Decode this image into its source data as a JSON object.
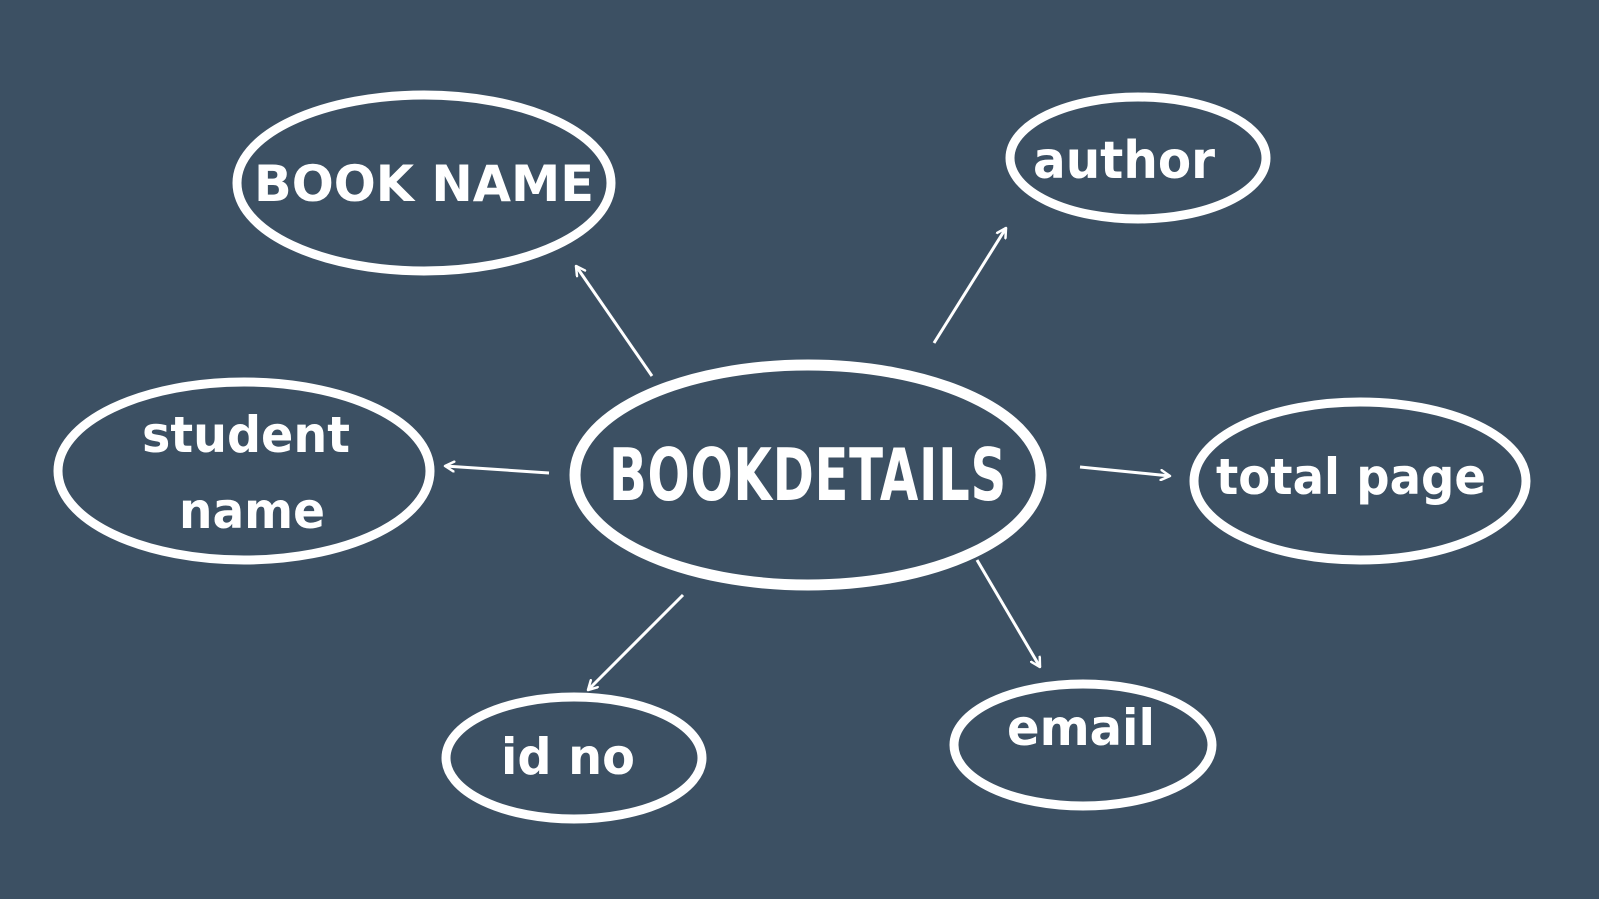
{
  "colors": {
    "background": "#3c5063",
    "stroke": "#ffffff",
    "text": "#ffffff"
  },
  "diagram": {
    "center": {
      "label": "BOOKDETAILS"
    },
    "nodes": {
      "book_name": {
        "label": "BOOK NAME"
      },
      "author": {
        "label": "author"
      },
      "student_name": {
        "line1": "student",
        "line2": "name"
      },
      "total_page": {
        "label": "total page"
      },
      "id_no": {
        "label": "id no"
      },
      "email": {
        "label": "email"
      }
    }
  }
}
